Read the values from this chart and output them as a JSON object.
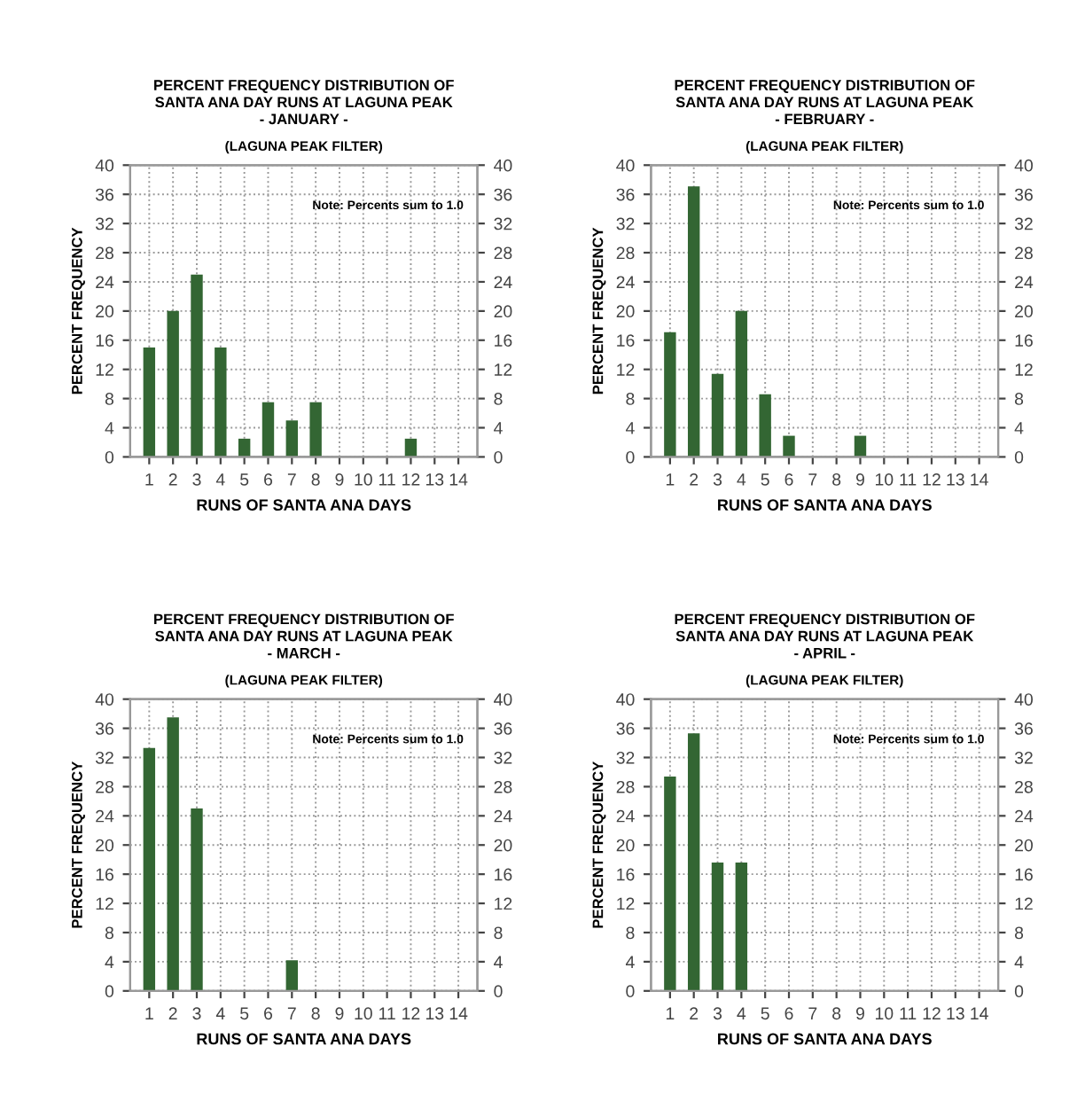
{
  "chart_data": [
    {
      "type": "bar",
      "title": "PERCENT FREQUENCY DISTRIBUTION OF\nSANTA ANA DAY RUNS AT LAGUNA PEAK\n- JANUARY -",
      "subtitle": "(LAGUNA PEAK FILTER)",
      "xlabel": "RUNS OF SANTA ANA DAYS",
      "ylabel": "PERCENT FREQUENCY",
      "categories": [
        "1",
        "2",
        "3",
        "4",
        "5",
        "6",
        "7",
        "8",
        "9",
        "10",
        "11",
        "12",
        "13",
        "14"
      ],
      "values": [
        15,
        20,
        25,
        15,
        2.5,
        7.5,
        5,
        7.5,
        0,
        0,
        0,
        2.5,
        0,
        0
      ],
      "color": "#336633",
      "ylim": [
        0,
        40
      ],
      "yticks": [
        0,
        4,
        8,
        12,
        16,
        20,
        24,
        28,
        32,
        36,
        40
      ],
      "y2lim": [
        0,
        40
      ],
      "y2ticks": [
        0,
        4,
        8,
        12,
        16,
        20,
        24,
        28,
        32,
        36,
        40
      ],
      "grid": true,
      "annotations": [
        "Note: Percents sum to 1.0"
      ]
    },
    {
      "type": "bar",
      "title": "PERCENT FREQUENCY DISTRIBUTION OF\nSANTA ANA DAY RUNS AT LAGUNA PEAK\n- FEBRUARY -",
      "subtitle": "(LAGUNA PEAK FILTER)",
      "xlabel": "RUNS OF SANTA ANA DAYS",
      "ylabel": "PERCENT FREQUENCY",
      "categories": [
        "1",
        "2",
        "3",
        "4",
        "5",
        "6",
        "7",
        "8",
        "9",
        "10",
        "11",
        "12",
        "13",
        "14"
      ],
      "values": [
        17.1,
        37.1,
        11.4,
        20,
        8.6,
        2.9,
        0,
        0,
        2.9,
        0,
        0,
        0,
        0,
        0
      ],
      "color": "#336633",
      "ylim": [
        0,
        40
      ],
      "yticks": [
        0,
        4,
        8,
        12,
        16,
        20,
        24,
        28,
        32,
        36,
        40
      ],
      "y2lim": [
        0,
        40
      ],
      "y2ticks": [
        0,
        4,
        8,
        12,
        16,
        20,
        24,
        28,
        32,
        36,
        40
      ],
      "grid": true,
      "annotations": [
        "Note: Percents sum to 1.0"
      ]
    },
    {
      "type": "bar",
      "title": "PERCENT FREQUENCY DISTRIBUTION OF\nSANTA ANA DAY RUNS AT LAGUNA PEAK\n- MARCH -",
      "subtitle": "(LAGUNA PEAK FILTER)",
      "xlabel": "RUNS OF SANTA ANA DAYS",
      "ylabel": "PERCENT FREQUENCY",
      "categories": [
        "1",
        "2",
        "3",
        "4",
        "5",
        "6",
        "7",
        "8",
        "9",
        "10",
        "11",
        "12",
        "13",
        "14"
      ],
      "values": [
        33.3,
        37.5,
        25,
        0,
        0,
        0,
        4.2,
        0,
        0,
        0,
        0,
        0,
        0,
        0
      ],
      "color": "#336633",
      "ylim": [
        0,
        40
      ],
      "yticks": [
        0,
        4,
        8,
        12,
        16,
        20,
        24,
        28,
        32,
        36,
        40
      ],
      "y2lim": [
        0,
        40
      ],
      "y2ticks": [
        0,
        4,
        8,
        12,
        16,
        20,
        24,
        28,
        32,
        36,
        40
      ],
      "grid": true,
      "annotations": [
        "Note: Percents sum to 1.0"
      ]
    },
    {
      "type": "bar",
      "title": "PERCENT FREQUENCY DISTRIBUTION OF\nSANTA ANA DAY RUNS AT LAGUNA PEAK\n- APRIL -",
      "subtitle": "(LAGUNA PEAK FILTER)",
      "xlabel": "RUNS OF SANTA ANA DAYS",
      "ylabel": "PERCENT FREQUENCY",
      "categories": [
        "1",
        "2",
        "3",
        "4",
        "5",
        "6",
        "7",
        "8",
        "9",
        "10",
        "11",
        "12",
        "13",
        "14"
      ],
      "values": [
        29.4,
        35.3,
        17.6,
        17.6,
        0,
        0,
        0,
        0,
        0,
        0,
        0,
        0,
        0,
        0
      ],
      "color": "#336633",
      "ylim": [
        0,
        40
      ],
      "yticks": [
        0,
        4,
        8,
        12,
        16,
        20,
        24,
        28,
        32,
        36,
        40
      ],
      "y2lim": [
        0,
        40
      ],
      "y2ticks": [
        0,
        4,
        8,
        12,
        16,
        20,
        24,
        28,
        32,
        36,
        40
      ],
      "grid": true,
      "annotations": [
        "Note: Percents sum to 1.0"
      ]
    }
  ]
}
